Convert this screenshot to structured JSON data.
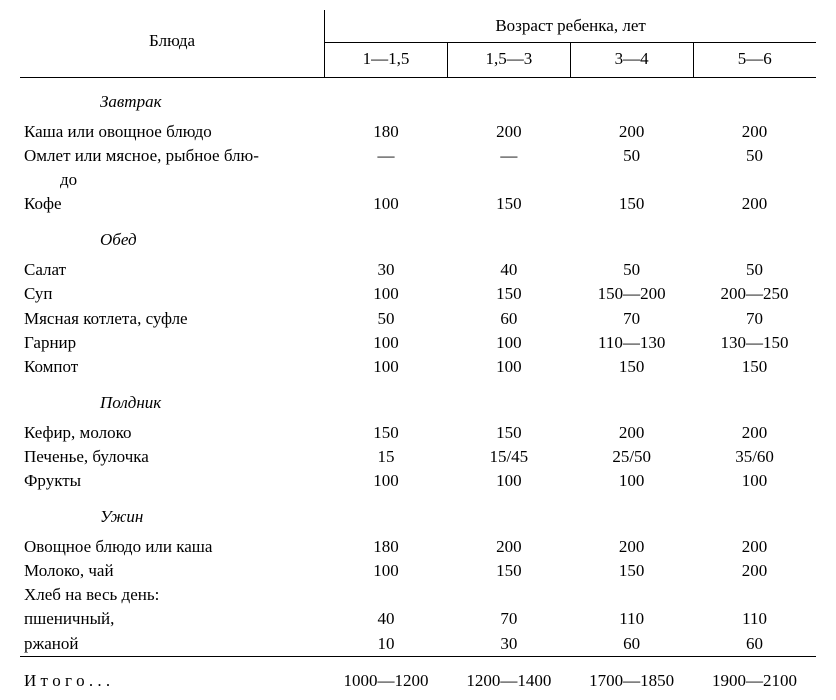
{
  "header": {
    "left": "Блюда",
    "right": "Возраст ребенка, лет"
  },
  "ages": [
    "1—1,5",
    "1,5—3",
    "3—4",
    "5—6"
  ],
  "sections": [
    {
      "title": "Завтрак",
      "rows": [
        {
          "dish": "Каша или овощное блюдо",
          "v": [
            "180",
            "200",
            "200",
            "200"
          ]
        },
        {
          "dish": "Омлет или мясное, рыбное блю-",
          "v": [
            "—",
            "—",
            "50",
            "50"
          ]
        },
        {
          "dish": "до",
          "v": [
            "",
            "",
            "",
            ""
          ],
          "indent": true
        },
        {
          "dish": "Кофе",
          "v": [
            "100",
            "150",
            "150",
            "200"
          ]
        }
      ]
    },
    {
      "title": "Обед",
      "rows": [
        {
          "dish": "Салат",
          "v": [
            "30",
            "40",
            "50",
            "50"
          ]
        },
        {
          "dish": "Суп",
          "v": [
            "100",
            "150",
            "150—200",
            "200—250"
          ]
        },
        {
          "dish": "Мясная котлета, суфле",
          "v": [
            "50",
            "60",
            "70",
            "70"
          ]
        },
        {
          "dish": "Гарнир",
          "v": [
            "100",
            "100",
            "110—130",
            "130—150"
          ]
        },
        {
          "dish": "Компот",
          "v": [
            "100",
            "100",
            "150",
            "150"
          ]
        }
      ]
    },
    {
      "title": "Полдник",
      "rows": [
        {
          "dish": "Кефир, молоко",
          "v": [
            "150",
            "150",
            "200",
            "200"
          ]
        },
        {
          "dish": "Печенье, булочка",
          "v": [
            "15",
            "15/45",
            "25/50",
            "35/60"
          ]
        },
        {
          "dish": "Фрукты",
          "v": [
            "100",
            "100",
            "100",
            "100"
          ]
        }
      ]
    },
    {
      "title": "Ужин",
      "rows": [
        {
          "dish": "Овощное блюдо или каша",
          "v": [
            "180",
            "200",
            "200",
            "200"
          ]
        },
        {
          "dish": "Молоко, чай",
          "v": [
            "100",
            "150",
            "150",
            "200"
          ]
        },
        {
          "dish": "Хлеб на весь день:",
          "v": [
            "",
            "",
            "",
            ""
          ]
        },
        {
          "dish": "пшеничный,",
          "v": [
            "40",
            "70",
            "110",
            "110"
          ]
        },
        {
          "dish": "ржаной",
          "v": [
            "10",
            "30",
            "60",
            "60"
          ]
        }
      ]
    }
  ],
  "totals": {
    "label": "Итого...",
    "label_spaced": "И т о г о . . .",
    "v": [
      "1000—1200",
      "1200—1400",
      "1700—1850",
      "1900—2100"
    ]
  }
}
